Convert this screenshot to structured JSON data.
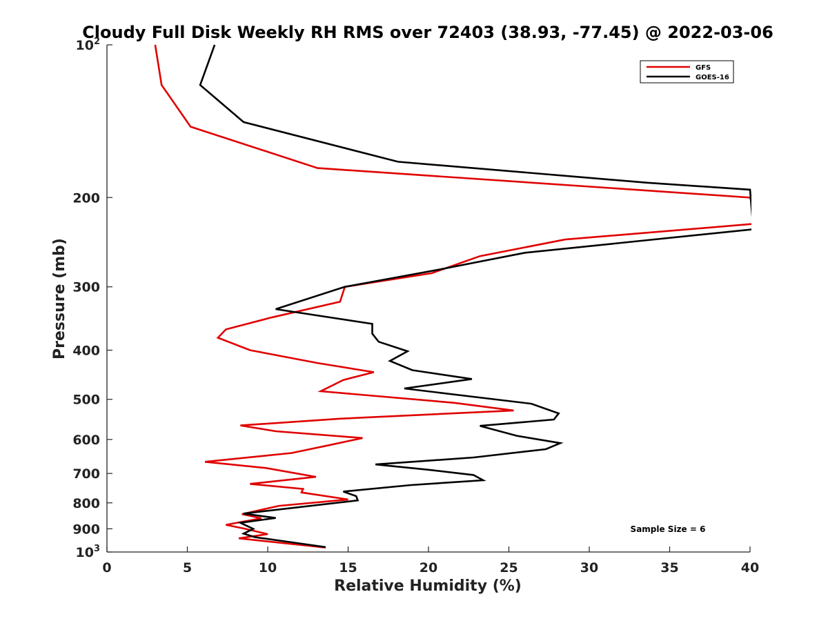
{
  "chart_data": {
    "type": "line",
    "title": "Cloudy Full Disk Weekly RH RMS over 72403 (38.93, -77.45) @ 2022-03-06",
    "xlabel": "Relative Humidity (%)",
    "ylabel": "Pressure (mb)",
    "xlim": [
      0,
      40
    ],
    "ylim": [
      1000,
      100
    ],
    "y_scale": "log",
    "y_reversed": true,
    "x_ticks": [
      "0",
      "5",
      "10",
      "15",
      "20",
      "25",
      "30",
      "35",
      "40"
    ],
    "y_ticks": [
      {
        "value": 100,
        "base": "10",
        "exp": "2"
      },
      {
        "value": 200,
        "label": "200"
      },
      {
        "value": 300,
        "label": "300"
      },
      {
        "value": 400,
        "label": "400"
      },
      {
        "value": 500,
        "label": "500"
      },
      {
        "value": 600,
        "label": "600"
      },
      {
        "value": 700,
        "label": "700"
      },
      {
        "value": 800,
        "label": "800"
      },
      {
        "value": 900,
        "label": "900"
      },
      {
        "value": 1000,
        "base": "10",
        "exp": "3"
      }
    ],
    "grid": false,
    "legend_position": "top-right",
    "annotation": "Sample Size = 6",
    "series": [
      {
        "name": "GFS",
        "color": "#e00000",
        "points": [
          [
            3.0,
            100
          ],
          [
            3.4,
            120
          ],
          [
            5.2,
            145
          ],
          [
            13.1,
            175
          ],
          [
            40.0,
            200
          ],
          [
            40.5,
            225
          ],
          [
            28.5,
            242
          ],
          [
            23.2,
            261
          ],
          [
            20.2,
            282
          ],
          [
            14.8,
            300
          ],
          [
            14.5,
            321
          ],
          [
            10.2,
            345
          ],
          [
            7.4,
            364
          ],
          [
            6.9,
            378
          ],
          [
            8.9,
            400
          ],
          [
            13.1,
            424
          ],
          [
            16.6,
            442
          ],
          [
            14.7,
            458
          ],
          [
            13.3,
            482
          ],
          [
            21.6,
            508
          ],
          [
            25.3,
            526
          ],
          [
            14.5,
            546
          ],
          [
            8.3,
            563
          ],
          [
            10.5,
            578
          ],
          [
            15.9,
            596
          ],
          [
            14.1,
            613
          ],
          [
            11.5,
            638
          ],
          [
            6.1,
            664
          ],
          [
            9.9,
            683
          ],
          [
            13.0,
            711
          ],
          [
            8.9,
            734
          ],
          [
            12.2,
            751
          ],
          [
            12.1,
            763
          ],
          [
            15.0,
            788
          ],
          [
            10.7,
            811
          ],
          [
            8.4,
            842
          ],
          [
            9.6,
            858
          ],
          [
            7.4,
            884
          ],
          [
            8.6,
            900
          ],
          [
            10.0,
            922
          ],
          [
            8.2,
            940
          ],
          [
            13.6,
            980
          ]
        ]
      },
      {
        "name": "GOES-16",
        "color": "#000000",
        "points": [
          [
            6.7,
            100
          ],
          [
            5.8,
            120
          ],
          [
            8.5,
            142
          ],
          [
            18.1,
            170
          ],
          [
            33.6,
            187
          ],
          [
            40.0,
            193
          ],
          [
            40.2,
            231
          ],
          [
            26.0,
            257
          ],
          [
            20.5,
            278
          ],
          [
            14.8,
            300
          ],
          [
            10.5,
            332
          ],
          [
            16.5,
            355
          ],
          [
            16.5,
            371
          ],
          [
            16.9,
            385
          ],
          [
            18.7,
            402
          ],
          [
            17.6,
            420
          ],
          [
            19.0,
            438
          ],
          [
            22.7,
            456
          ],
          [
            18.5,
            476
          ],
          [
            26.4,
            510
          ],
          [
            28.1,
            533
          ],
          [
            27.8,
            548
          ],
          [
            23.2,
            564
          ],
          [
            25.5,
            590
          ],
          [
            28.2,
            610
          ],
          [
            27.3,
            627
          ],
          [
            22.8,
            651
          ],
          [
            16.7,
            672
          ],
          [
            20.1,
            689
          ],
          [
            22.8,
            705
          ],
          [
            23.4,
            722
          ],
          [
            18.9,
            738
          ],
          [
            14.7,
            760
          ],
          [
            15.5,
            776
          ],
          [
            15.6,
            791
          ],
          [
            8.5,
            840
          ],
          [
            10.5,
            857
          ],
          [
            8.3,
            876
          ],
          [
            9.1,
            900
          ],
          [
            8.5,
            920
          ],
          [
            9.2,
            935
          ],
          [
            11.2,
            954
          ],
          [
            13.6,
            978
          ]
        ]
      }
    ]
  }
}
